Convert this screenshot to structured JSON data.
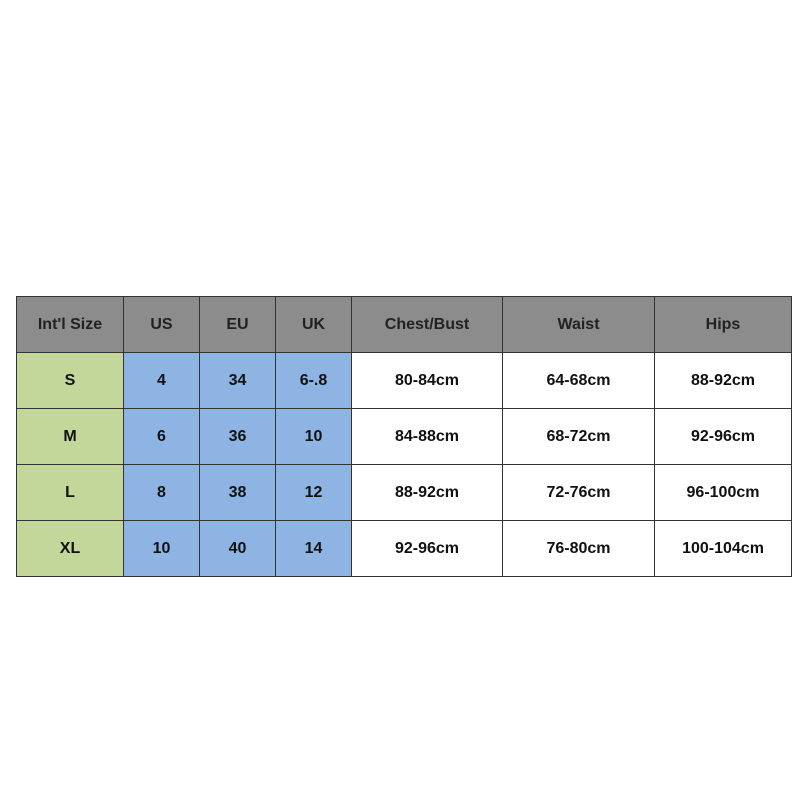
{
  "headers": [
    "Int'l Size",
    "US",
    "EU",
    "UK",
    "Chest/Bust",
    "Waist",
    "Hips"
  ],
  "rows": [
    [
      "S",
      "4",
      "34",
      "6-.8",
      "80-84cm",
      "64-68cm",
      "88-92cm"
    ],
    [
      "M",
      "6",
      "36",
      "10",
      "84-88cm",
      "68-72cm",
      "92-96cm"
    ],
    [
      "L",
      "8",
      "38",
      "12",
      "88-92cm",
      "72-76cm",
      "96-100cm"
    ],
    [
      "XL",
      "10",
      "40",
      "14",
      "92-96cm",
      "76-80cm",
      "100-104cm"
    ]
  ],
  "colors": {
    "header": "#8c8c8c",
    "size_column": "#c4d79b",
    "region_columns": "#8db4e2",
    "measurements": "#ffffff"
  }
}
